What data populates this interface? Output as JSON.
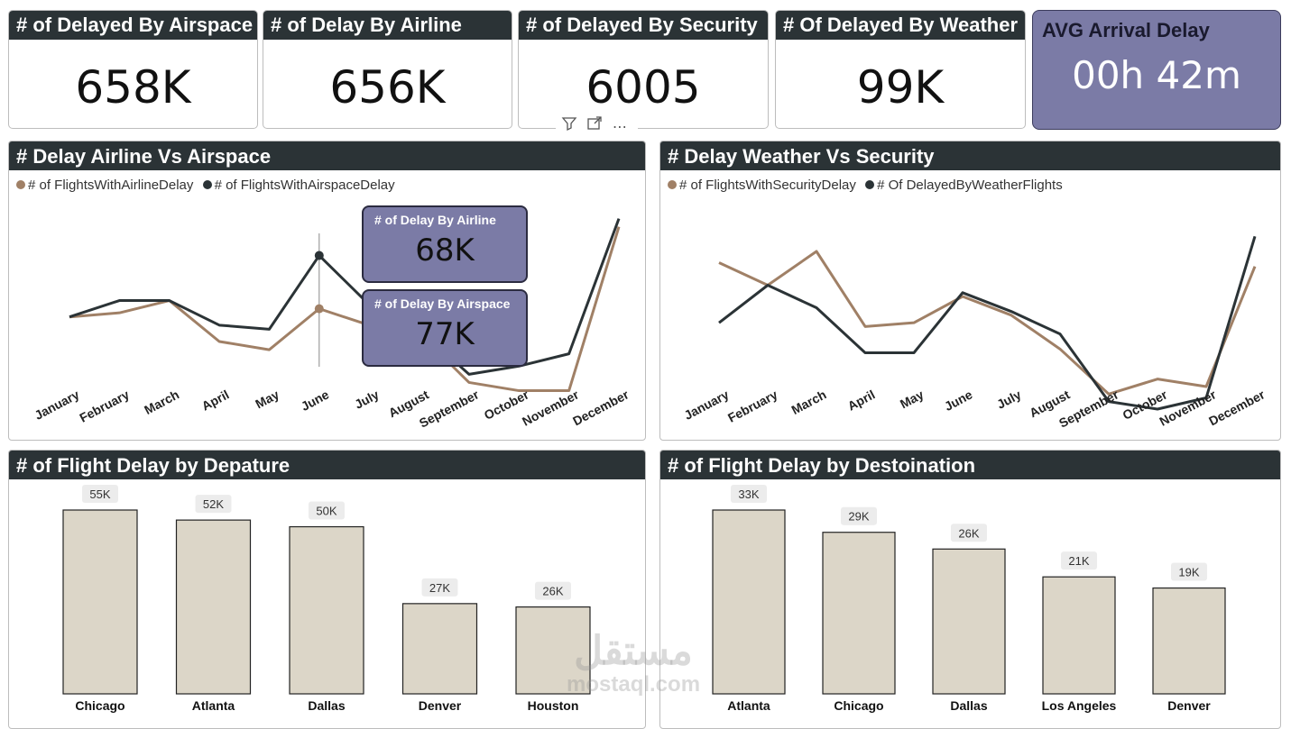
{
  "kpis": {
    "airspace": {
      "title": "# of Delayed By Airspace",
      "value": "658K"
    },
    "airline": {
      "title": "# of Delay By Airline",
      "value": "656K"
    },
    "security": {
      "title": "# of Delayed By Security",
      "value": "6005"
    },
    "weather": {
      "title": "# Of Delayed By Weather",
      "value": "99K"
    },
    "avg": {
      "title": "AVG Arrival Delay",
      "value": "00h 42m"
    }
  },
  "visual_toolbar": {
    "filter_icon": "filter-icon",
    "focus_icon": "focus-mode-icon",
    "more_icon": "more-options-icon",
    "more_text": "⋯"
  },
  "tooltip": {
    "airline": {
      "title": "# of Delay By Airline",
      "value": "68K"
    },
    "airspace": {
      "title": "# of Delay By Airspace",
      "value": "77K"
    }
  },
  "colors": {
    "brown": "#a08066",
    "dark": "#2b3336",
    "bar": "#dcd6c8",
    "accent": "#7b7ba6"
  },
  "watermark": {
    "arabic": "مستقل",
    "latin": "mostaql.com"
  },
  "chart_data": [
    {
      "type": "line",
      "title": "# Delay Airline Vs Airspace",
      "categories": [
        "January",
        "February",
        "March",
        "April",
        "May",
        "June",
        "July",
        "August",
        "September",
        "October",
        "November",
        "December"
      ],
      "series": [
        {
          "name": "# of FlightsWithAirlineDelay",
          "color": "#a08066",
          "values": [
            53,
            54,
            57,
            47,
            45,
            55,
            51,
            49,
            37,
            35,
            35,
            75
          ]
        },
        {
          "name": "# of FlightsWithAirspaceDelay",
          "color": "#2b3336",
          "values": [
            53,
            57,
            57,
            51,
            50,
            68,
            56,
            50,
            39,
            41,
            44,
            77
          ]
        }
      ],
      "ylim": [
        25,
        80
      ]
    },
    {
      "type": "line",
      "title": "# Delay Weather Vs Security",
      "categories": [
        "January",
        "February",
        "March",
        "April",
        "May",
        "June",
        "July",
        "August",
        "September",
        "October",
        "November",
        "December"
      ],
      "series": [
        {
          "name": "# of FlightsWithSecurityDelay",
          "color": "#a08066",
          "values": [
            70,
            64,
            73,
            53,
            54,
            61,
            56,
            47,
            35,
            39,
            37,
            69
          ]
        },
        {
          "name": "# Of DelayedByWeatherFlights",
          "color": "#2b3336",
          "values": [
            54,
            64,
            58,
            46,
            46,
            62,
            57,
            51,
            33,
            31,
            34,
            77
          ]
        }
      ],
      "ylim": [
        25,
        85
      ]
    },
    {
      "type": "bar",
      "title": "# of Flight Delay by Depature",
      "categories": [
        "Chicago",
        "Atlanta",
        "Dallas",
        "Denver",
        "Houston"
      ],
      "values": [
        55,
        52,
        50,
        27,
        26
      ],
      "labels": [
        "55K",
        "52K",
        "50K",
        "27K",
        "26K"
      ],
      "ylim": [
        0,
        55
      ]
    },
    {
      "type": "bar",
      "title": "# of Flight Delay by Destoination",
      "categories": [
        "Atlanta",
        "Chicago",
        "Dallas",
        "Los Angeles",
        "Denver"
      ],
      "values": [
        33,
        29,
        26,
        21,
        19
      ],
      "labels": [
        "33K",
        "29K",
        "26K",
        "21K",
        "19K"
      ],
      "ylim": [
        0,
        33
      ]
    }
  ]
}
